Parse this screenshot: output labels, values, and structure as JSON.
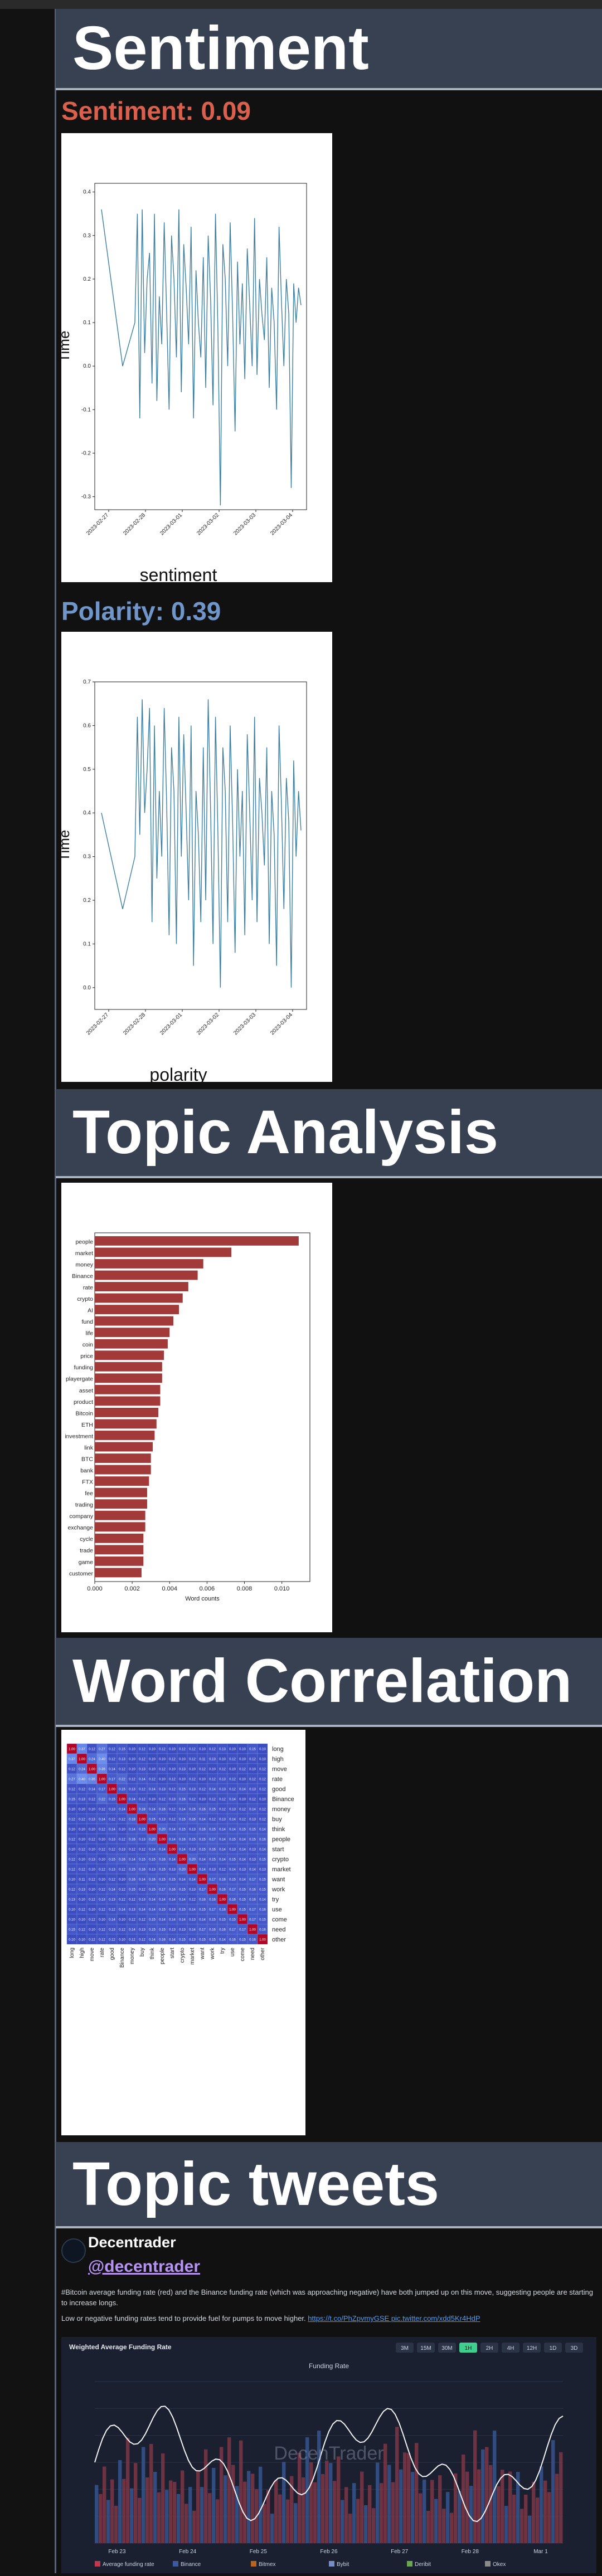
{
  "sections": {
    "sentiment": "Sentiment",
    "topic_analysis": "Topic Analysis",
    "word_correlation": "Word Correlation",
    "topic_tweets": "Topic tweets"
  },
  "metrics": {
    "sentiment_label": "Sentiment: 0.09",
    "polarity_label": "Polarity: 0.39"
  },
  "colors": {
    "sentiment_title": "#d9604c",
    "polarity_title": "#6f95c9",
    "line": "#3b7ea1",
    "bar": "#a33a3a"
  },
  "chart_data": [
    {
      "type": "line",
      "title": "",
      "xlabel": "sentiment",
      "ylabel": "Time",
      "x_ticks": [
        "2023-02-27",
        "2023-02-28",
        "2023-03-01",
        "2023-03-02",
        "2023-03-03",
        "2023-03-04"
      ],
      "y_ticks": [
        -0.3,
        -0.2,
        -0.1,
        0.0,
        0.1,
        0.2,
        0.3,
        0.4
      ],
      "ylim": [
        -0.33,
        0.42
      ],
      "grid": false,
      "values": [
        0.36,
        0.0,
        0.1,
        0.35,
        -0.12,
        0.36,
        0.03,
        0.2,
        0.26,
        -0.04,
        0.35,
        -0.08,
        0.16,
        0.05,
        0.33,
        0.12,
        -0.1,
        0.3,
        0.2,
        0.02,
        0.36,
        -0.06,
        0.28,
        0.18,
        0.05,
        0.32,
        -0.12,
        0.22,
        0.1,
        0.02,
        0.25,
        -0.05,
        0.3,
        0.15,
        -0.09,
        0.35,
        0.08,
        -0.32,
        0.28,
        0.2,
        0.0,
        0.33,
        0.12,
        -0.15,
        0.24,
        0.05,
        0.19,
        -0.03,
        0.27,
        0.14,
        0.0,
        0.34,
        -0.02,
        0.2,
        0.12,
        0.06,
        0.25,
        -0.05,
        0.18,
        0.1,
        -0.1,
        0.32,
        0.15,
        0.0,
        0.2,
        0.12,
        -0.28,
        0.19,
        0.1,
        0.18,
        0.14
      ]
    },
    {
      "type": "line",
      "title": "",
      "xlabel": "polarity",
      "ylabel": "Time",
      "x_ticks": [
        "2023-02-27",
        "2023-02-28",
        "2023-03-01",
        "2023-03-02",
        "2023-03-03",
        "2023-03-04"
      ],
      "y_ticks": [
        0.0,
        0.1,
        0.2,
        0.3,
        0.4,
        0.5,
        0.6,
        0.7
      ],
      "ylim": [
        -0.05,
        0.7
      ],
      "grid": false,
      "values": [
        0.4,
        0.18,
        0.3,
        0.62,
        0.35,
        0.66,
        0.4,
        0.5,
        0.64,
        0.15,
        0.6,
        0.25,
        0.45,
        0.3,
        0.64,
        0.42,
        0.12,
        0.55,
        0.45,
        0.1,
        0.62,
        0.3,
        0.58,
        0.4,
        0.2,
        0.6,
        0.05,
        0.45,
        0.35,
        0.15,
        0.55,
        0.2,
        0.66,
        0.4,
        0.1,
        0.62,
        0.35,
        0.0,
        0.55,
        0.45,
        0.15,
        0.6,
        0.38,
        0.08,
        0.5,
        0.3,
        0.45,
        0.12,
        0.58,
        0.4,
        0.2,
        0.62,
        0.15,
        0.48,
        0.4,
        0.28,
        0.55,
        0.1,
        0.45,
        0.35,
        0.05,
        0.6,
        0.42,
        0.18,
        0.48,
        0.38,
        0.0,
        0.52,
        0.3,
        0.45,
        0.36
      ]
    },
    {
      "type": "bar",
      "orientation": "horizontal",
      "title": "",
      "xlabel": "Word counts",
      "ylabel": "",
      "categories": [
        "people",
        "market",
        "money",
        "Binance",
        "rate",
        "crypto",
        "AI",
        "fund",
        "life",
        "coin",
        "price",
        "funding",
        "playergate",
        "asset",
        "product",
        "Bitcoin",
        "ETH",
        "investment",
        "link",
        "BTC",
        "bank",
        "FTX",
        "fee",
        "trading",
        "company",
        "exchange",
        "cycle",
        "trade",
        "game",
        "customer"
      ],
      "values": [
        0.0109,
        0.0073,
        0.0058,
        0.0055,
        0.005,
        0.0047,
        0.0045,
        0.0042,
        0.004,
        0.0039,
        0.0037,
        0.0036,
        0.0036,
        0.0035,
        0.0035,
        0.0034,
        0.0033,
        0.0032,
        0.0031,
        0.003,
        0.003,
        0.0029,
        0.0028,
        0.0028,
        0.0027,
        0.0027,
        0.0026,
        0.0026,
        0.0026,
        0.0025
      ],
      "x_ticks": [
        0.0,
        0.002,
        0.004,
        0.006,
        0.008,
        0.01
      ],
      "x_tick_labels": [
        "0.000",
        "0.002",
        "0.004",
        "0.006",
        "0.008",
        "0.010"
      ],
      "xlim": [
        0,
        0.0115
      ],
      "grid": false
    },
    {
      "type": "heatmap",
      "title": "",
      "words": [
        "long",
        "high",
        "move",
        "rate",
        "good",
        "Binance",
        "money",
        "buy",
        "think",
        "people",
        "start",
        "crypto",
        "market",
        "want",
        "work",
        "try",
        "use",
        "come",
        "need",
        "other"
      ],
      "values": [
        [
          1.0,
          0.37,
          0.12,
          0.27,
          0.12,
          0.15,
          0.1,
          0.12,
          0.1,
          0.12,
          0.1,
          0.12,
          0.12,
          0.1,
          0.12,
          0.13,
          0.1,
          0.1,
          0.15,
          0.1
        ],
        [
          0.37,
          1.0,
          0.24,
          0.4,
          0.12,
          0.13,
          0.1,
          0.12,
          0.1,
          0.1,
          0.12,
          0.1,
          0.12,
          0.11,
          0.13,
          0.1,
          0.12,
          0.1,
          0.12,
          0.1
        ],
        [
          0.12,
          0.24,
          1.0,
          0.35,
          0.14,
          0.12,
          0.1,
          0.13,
          0.1,
          0.12,
          0.1,
          0.13,
          0.1,
          0.12,
          0.1,
          0.12,
          0.1,
          0.12,
          0.1,
          0.12
        ],
        [
          0.27,
          0.4,
          0.35,
          1.0,
          0.17,
          0.22,
          0.12,
          0.14,
          0.12,
          0.1,
          0.12,
          0.1,
          0.12,
          0.1,
          0.12,
          0.13,
          0.12,
          0.1,
          0.12,
          0.12
        ],
        [
          0.12,
          0.12,
          0.14,
          0.17,
          1.0,
          0.15,
          0.13,
          0.12,
          0.14,
          0.13,
          0.12,
          0.15,
          0.13,
          0.12,
          0.14,
          0.13,
          0.12,
          0.14,
          0.13,
          0.12
        ],
        [
          0.15,
          0.13,
          0.12,
          0.22,
          0.15,
          1.0,
          0.14,
          0.12,
          0.1,
          0.12,
          0.13,
          0.16,
          0.12,
          0.1,
          0.12,
          0.12,
          0.14,
          0.1,
          0.12,
          0.1
        ],
        [
          0.1,
          0.1,
          0.1,
          0.12,
          0.13,
          0.14,
          1.0,
          0.18,
          0.14,
          0.16,
          0.12,
          0.14,
          0.15,
          0.16,
          0.15,
          0.12,
          0.13,
          0.12,
          0.14,
          0.12
        ],
        [
          0.12,
          0.12,
          0.13,
          0.14,
          0.12,
          0.12,
          0.18,
          1.0,
          0.15,
          0.13,
          0.12,
          0.15,
          0.16,
          0.14,
          0.12,
          0.13,
          0.14,
          0.12,
          0.13,
          0.12
        ],
        [
          0.1,
          0.1,
          0.1,
          0.12,
          0.14,
          0.1,
          0.14,
          0.15,
          1.0,
          0.2,
          0.14,
          0.15,
          0.13,
          0.16,
          0.15,
          0.14,
          0.14,
          0.15,
          0.15,
          0.14
        ],
        [
          0.12,
          0.1,
          0.12,
          0.1,
          0.13,
          0.12,
          0.16,
          0.13,
          0.2,
          1.0,
          0.14,
          0.16,
          0.15,
          0.15,
          0.17,
          0.14,
          0.15,
          0.14,
          0.15,
          0.16
        ],
        [
          0.1,
          0.12,
          0.1,
          0.12,
          0.12,
          0.13,
          0.12,
          0.12,
          0.14,
          0.14,
          1.0,
          0.14,
          0.13,
          0.15,
          0.16,
          0.14,
          0.13,
          0.14,
          0.13,
          0.14
        ],
        [
          0.12,
          0.1,
          0.13,
          0.1,
          0.15,
          0.16,
          0.14,
          0.15,
          0.15,
          0.16,
          0.14,
          1.0,
          0.2,
          0.14,
          0.15,
          0.14,
          0.15,
          0.14,
          0.13,
          0.15
        ],
        [
          0.12,
          0.12,
          0.1,
          0.12,
          0.13,
          0.12,
          0.15,
          0.16,
          0.13,
          0.15,
          0.13,
          0.2,
          1.0,
          0.14,
          0.13,
          0.12,
          0.14,
          0.13,
          0.14,
          0.13
        ],
        [
          0.1,
          0.11,
          0.12,
          0.1,
          0.12,
          0.1,
          0.16,
          0.14,
          0.16,
          0.15,
          0.15,
          0.14,
          0.14,
          1.0,
          0.17,
          0.16,
          0.15,
          0.14,
          0.17,
          0.15
        ],
        [
          0.12,
          0.13,
          0.1,
          0.12,
          0.14,
          0.12,
          0.15,
          0.12,
          0.15,
          0.17,
          0.16,
          0.15,
          0.13,
          0.17,
          1.0,
          0.16,
          0.17,
          0.15,
          0.16,
          0.15
        ],
        [
          0.13,
          0.1,
          0.12,
          0.13,
          0.13,
          0.12,
          0.12,
          0.13,
          0.14,
          0.14,
          0.14,
          0.14,
          0.12,
          0.16,
          0.16,
          1.0,
          0.16,
          0.15,
          0.16,
          0.14
        ],
        [
          0.1,
          0.12,
          0.1,
          0.12,
          0.12,
          0.14,
          0.13,
          0.14,
          0.14,
          0.15,
          0.13,
          0.15,
          0.14,
          0.15,
          0.17,
          0.16,
          1.0,
          0.15,
          0.17,
          0.16
        ],
        [
          0.1,
          0.1,
          0.12,
          0.1,
          0.14,
          0.1,
          0.12,
          0.12,
          0.15,
          0.14,
          0.14,
          0.14,
          0.13,
          0.14,
          0.15,
          0.15,
          0.15,
          1.0,
          0.17,
          0.15
        ],
        [
          0.15,
          0.12,
          0.1,
          0.12,
          0.13,
          0.12,
          0.14,
          0.13,
          0.15,
          0.15,
          0.13,
          0.13,
          0.14,
          0.17,
          0.16,
          0.16,
          0.17,
          0.17,
          1.0,
          0.16
        ],
        [
          0.1,
          0.1,
          0.12,
          0.12,
          0.12,
          0.1,
          0.12,
          0.12,
          0.14,
          0.16,
          0.14,
          0.15,
          0.13,
          0.15,
          0.15,
          0.14,
          0.16,
          0.15,
          0.16,
          1.0
        ]
      ],
      "color_low": "#3b4cc0",
      "color_high": "#b40426"
    }
  ],
  "tweet": {
    "name": "Decentrader",
    "handle": "@decentrader",
    "text": "#Bitcoin average funding rate (red) and the Binance funding rate (which was approaching negative) have both jumped up on this move, suggesting people are starting to increase longs.",
    "text2": "Low or negative funding rates tend to provide fuel for pumps to move higher.",
    "link": "https://t.co/PhZpvmyGSE pic.twitter.com/xdd5Kr4HdP",
    "embed": {
      "title": "Weighted Average Funding Rate",
      "subtitle": "Funding Rate",
      "watermark": "DecenTrader",
      "timeframes": [
        "3M",
        "15M",
        "30M",
        "1H",
        "2H",
        "4H",
        "12H",
        "1D",
        "3D"
      ],
      "active_timeframe": "1H",
      "x_labels": [
        "Feb 23",
        "Feb 24",
        "Feb 25",
        "Feb 26",
        "Feb 27",
        "Feb 28",
        "Mar 1"
      ],
      "legend": [
        "Average funding rate",
        "Binance",
        "Bitmex",
        "Bybit",
        "Deribit",
        "Okex"
      ]
    }
  }
}
